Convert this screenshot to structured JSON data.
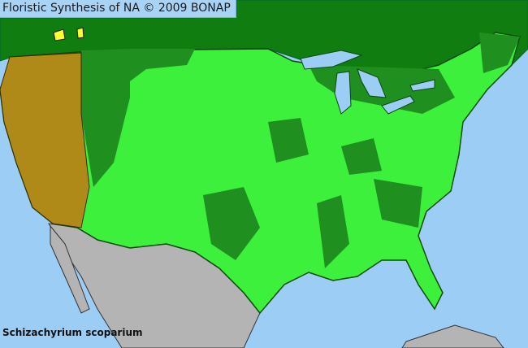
{
  "header": {
    "title": "Floristic Synthesis of NA © 2009 BONAP"
  },
  "map": {
    "species": "Schizachyrium scoparium",
    "colors": {
      "water": "#9ccdf5",
      "canada": "#0f7d0f",
      "present_state": "#1f8f1f",
      "present_county": "#3cf03c",
      "absent_state": "#b08a18",
      "rare": "#ffff33",
      "not_covered": "#b4b4b4"
    }
  }
}
